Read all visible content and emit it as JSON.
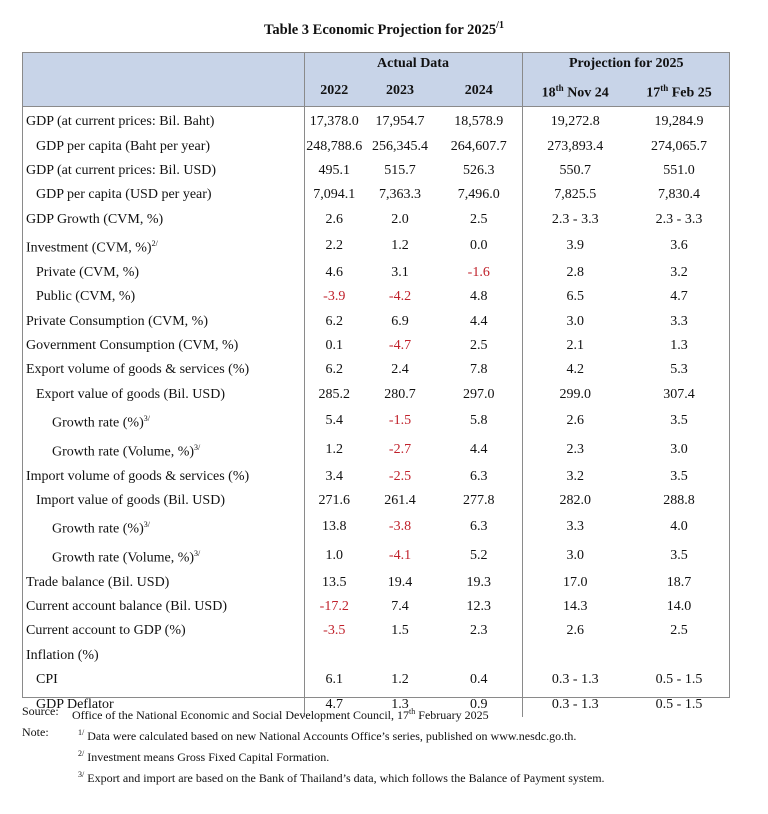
{
  "title": "Table 3 Economic Projection for 2025",
  "title_sup": "/1",
  "header": {
    "actual": "Actual Data",
    "projection": "Projection for 2025",
    "years": [
      "2022",
      "2023",
      "2024"
    ],
    "proj1_day": "18",
    "proj1_sup": "th",
    "proj1_rest": " Nov 24",
    "proj2_day": "17",
    "proj2_sup": "th",
    "proj2_rest": " Feb 25"
  },
  "rows": [
    {
      "label": "GDP (at current prices: Bil. Baht)",
      "sup": "",
      "values": [
        "17,378.0",
        "17,954.7",
        "18,578.9",
        "19,272.8",
        "19,284.9"
      ],
      "neg": [
        false,
        false,
        false,
        false,
        false
      ]
    },
    {
      "label": "GDP per capita (Baht per year)",
      "sup": "",
      "values": [
        "248,788.6",
        "256,345.4",
        "264,607.7",
        "273,893.4",
        "274,065.7"
      ],
      "neg": [
        false,
        false,
        false,
        false,
        false
      ]
    },
    {
      "label": "GDP (at current prices: Bil. USD)",
      "sup": "",
      "values": [
        "495.1",
        "515.7",
        "526.3",
        "550.7",
        "551.0"
      ],
      "neg": [
        false,
        false,
        false,
        false,
        false
      ]
    },
    {
      "label": "GDP per capita (USD per year)",
      "sup": "",
      "values": [
        "7,094.1",
        "7,363.3",
        "7,496.0",
        "7,825.5",
        "7,830.4"
      ],
      "neg": [
        false,
        false,
        false,
        false,
        false
      ]
    },
    {
      "label": "GDP Growth (CVM, %)",
      "sup": "",
      "values": [
        "2.6",
        "2.0",
        "2.5",
        "2.3 - 3.3",
        "2.3 - 3.3"
      ],
      "neg": [
        false,
        false,
        false,
        false,
        false
      ]
    },
    {
      "label": "Investment (CVM, %)",
      "sup": "2/",
      "values": [
        "2.2",
        "1.2",
        "0.0",
        "3.9",
        "3.6"
      ],
      "neg": [
        false,
        false,
        false,
        false,
        false
      ]
    },
    {
      "label": "Private (CVM, %)",
      "sup": "",
      "values": [
        "4.6",
        "3.1",
        "-1.6",
        "2.8",
        "3.2"
      ],
      "neg": [
        false,
        false,
        true,
        false,
        false
      ]
    },
    {
      "label": "Public (CVM, %)",
      "sup": "",
      "values": [
        "-3.9",
        "-4.2",
        "4.8",
        "6.5",
        "4.7"
      ],
      "neg": [
        true,
        true,
        false,
        false,
        false
      ]
    },
    {
      "label": "Private Consumption (CVM, %)",
      "sup": "",
      "values": [
        "6.2",
        "6.9",
        "4.4",
        "3.0",
        "3.3"
      ],
      "neg": [
        false,
        false,
        false,
        false,
        false
      ]
    },
    {
      "label": "Government Consumption (CVM, %)",
      "sup": "",
      "values": [
        "0.1",
        "-4.7",
        "2.5",
        "2.1",
        "1.3"
      ],
      "neg": [
        false,
        true,
        false,
        false,
        false
      ]
    },
    {
      "label": "Export volume of goods & services (%)",
      "sup": "",
      "values": [
        "6.2",
        "2.4",
        "7.8",
        "4.2",
        "5.3"
      ],
      "neg": [
        false,
        false,
        false,
        false,
        false
      ]
    },
    {
      "label": "Export value of goods (Bil. USD)",
      "sup": "",
      "values": [
        "285.2",
        "280.7",
        "297.0",
        "299.0",
        "307.4"
      ],
      "neg": [
        false,
        false,
        false,
        false,
        false
      ]
    },
    {
      "label": "Growth rate (%)",
      "sup": "3/",
      "values": [
        "5.4",
        "-1.5",
        "5.8",
        "2.6",
        "3.5"
      ],
      "neg": [
        false,
        true,
        false,
        false,
        false
      ]
    },
    {
      "label": "Growth rate (Volume, %)",
      "sup": "3/",
      "values": [
        "1.2",
        "-2.7",
        "4.4",
        "2.3",
        "3.0"
      ],
      "neg": [
        false,
        true,
        false,
        false,
        false
      ]
    },
    {
      "label": "Import volume of goods & services (%)",
      "sup": "",
      "values": [
        "3.4",
        "-2.5",
        "6.3",
        "3.2",
        "3.5"
      ],
      "neg": [
        false,
        true,
        false,
        false,
        false
      ]
    },
    {
      "label": "Import value of goods (Bil. USD)",
      "sup": "",
      "values": [
        "271.6",
        "261.4",
        "277.8",
        "282.0",
        "288.8"
      ],
      "neg": [
        false,
        false,
        false,
        false,
        false
      ]
    },
    {
      "label": "Growth rate (%)",
      "sup": "3/",
      "values": [
        "13.8",
        "-3.8",
        "6.3",
        "3.3",
        "4.0"
      ],
      "neg": [
        false,
        true,
        false,
        false,
        false
      ]
    },
    {
      "label": "Growth rate (Volume, %)",
      "sup": "3/",
      "values": [
        "1.0",
        "-4.1",
        "5.2",
        "3.0",
        "3.5"
      ],
      "neg": [
        false,
        true,
        false,
        false,
        false
      ]
    },
    {
      "label": "Trade balance (Bil. USD)",
      "sup": "",
      "values": [
        "13.5",
        "19.4",
        "19.3",
        "17.0",
        "18.7"
      ],
      "neg": [
        false,
        false,
        false,
        false,
        false
      ]
    },
    {
      "label": "Current account balance (Bil. USD)",
      "sup": "",
      "values": [
        "-17.2",
        "7.4",
        "12.3",
        "14.3",
        "14.0"
      ],
      "neg": [
        true,
        false,
        false,
        false,
        false
      ]
    },
    {
      "label": "Current account to GDP (%)",
      "sup": "",
      "values": [
        "-3.5",
        "1.5",
        "2.3",
        "2.6",
        "2.5"
      ],
      "neg": [
        true,
        false,
        false,
        false,
        false
      ]
    },
    {
      "label": "Inflation (%)",
      "sup": "",
      "values": [
        "",
        "",
        "",
        "",
        ""
      ],
      "neg": [
        false,
        false,
        false,
        false,
        false
      ]
    },
    {
      "label": "CPI",
      "sup": "",
      "values": [
        "6.1",
        "1.2",
        "0.4",
        "0.3 - 1.3",
        "0.5 - 1.5"
      ],
      "neg": [
        false,
        false,
        false,
        false,
        false
      ]
    },
    {
      "label": "GDP Deflator",
      "sup": "",
      "values": [
        "4.7",
        "1.3",
        "0.9",
        "0.3 - 1.3",
        "0.5 - 1.5"
      ],
      "neg": [
        false,
        false,
        false,
        false,
        false
      ]
    }
  ],
  "notes": {
    "source_key": "Source:",
    "source_text": "Office of the National Economic and Social Development Council, 17",
    "source_sup": "th",
    "source_tail": " February 2025",
    "note_key": "Note:",
    "n1_sup": "1/",
    "n1_text": " Data were calculated based on new National Accounts Office’s series, published on www.nesdc.go.th.",
    "n2_sup": "2/",
    "n2_text": " Investment means Gross Fixed Capital Formation.",
    "n3_sup": "3/",
    "n3_text": " Export and import are based on the Bank of Thailand’s data, which follows the Balance of Payment system."
  }
}
